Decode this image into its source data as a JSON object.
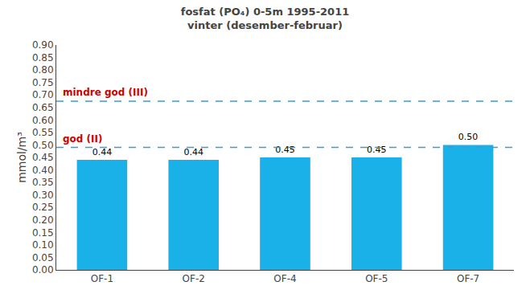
{
  "chart_data": {
    "type": "bar",
    "title": "fosfat (PO₄) 0-5m 1995-2011\nvinter (desember-februar)",
    "ylabel": "mmol/m³",
    "categories": [
      "OF-1",
      "OF-2",
      "OF-4",
      "OF-5",
      "OF-7"
    ],
    "values": [
      0.44,
      0.44,
      0.45,
      0.45,
      0.5
    ],
    "value_labels": [
      "0.44",
      "0.44",
      "0.45",
      "0.45",
      "0.50"
    ],
    "data_labels": true,
    "color": "#1ab0e8",
    "ylim": [
      0.0,
      0.9
    ],
    "yticks": [
      {
        "value": 0,
        "label": "0.00"
      },
      0.05,
      {
        "value": 0.1,
        "label": "0.10"
      },
      0.15,
      {
        "value": 0.2,
        "label": "0.20"
      },
      0.25,
      {
        "value": 0.3,
        "label": "0.30"
      },
      0.35,
      {
        "value": 0.4,
        "label": "0.40"
      },
      0.45,
      {
        "value": 0.5,
        "label": "0.50"
      },
      0.55,
      {
        "value": 0.6,
        "label": "0.60"
      },
      0.65,
      {
        "value": 0.7,
        "label": "0.70"
      },
      0.75,
      {
        "value": 0.8,
        "label": "0.80"
      },
      0.85,
      {
        "value": 0.9,
        "label": "0.90"
      }
    ],
    "grid": false,
    "hlines": [
      {
        "value": 0.49,
        "label": "god (II)",
        "color": "#4499cc",
        "line_style": "dashed",
        "label_color": "#cc0000"
      },
      {
        "value": 0.675,
        "label": "mindre god (III)",
        "color": "#4499cc",
        "line_style": "dashed",
        "label_color": "#cc0000"
      }
    ]
  }
}
